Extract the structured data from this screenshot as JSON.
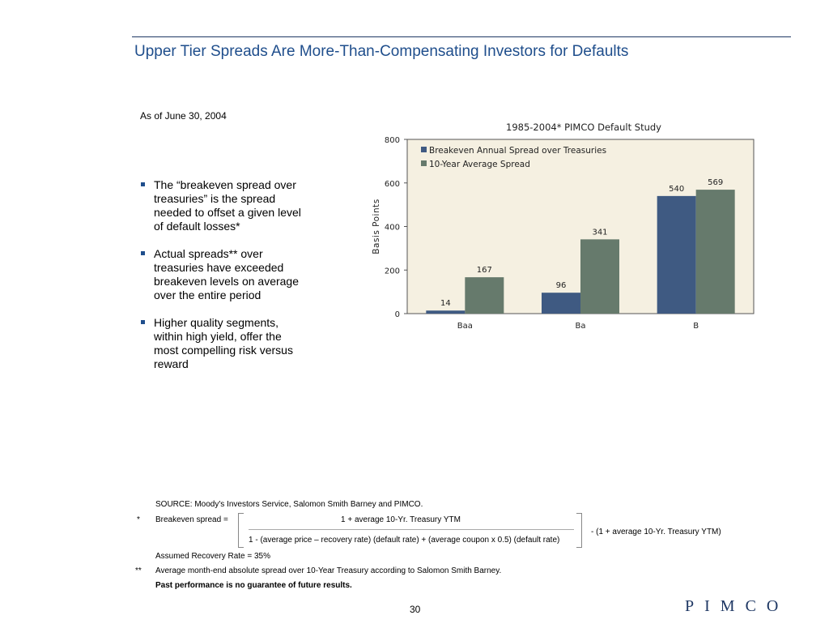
{
  "header": {
    "title": "Upper Tier Spreads Are More-Than-Compensating Investors for Defaults"
  },
  "as_of": "As of June 30, 2004",
  "bullets": [
    "The “breakeven spread over treasuries” is the spread needed to offset a given level of default losses*",
    "Actual spreads** over treasuries have exceeded breakeven levels on average over the entire period",
    "Higher quality segments, within high yield, offer the most compelling risk versus reward"
  ],
  "chart_data": {
    "type": "bar",
    "title": "1985-2004* PIMCO Default Study",
    "xlabel": "",
    "ylabel": "Basis Points",
    "categories": [
      "Baa",
      "Ba",
      "B"
    ],
    "series": [
      {
        "name": "Breakeven Annual Spread over Treasuries",
        "values": [
          14,
          96,
          540
        ],
        "color": "#3f5a82"
      },
      {
        "name": "10-Year Average Spread",
        "values": [
          167,
          341,
          569
        ],
        "color": "#667a6c"
      }
    ],
    "ylim": [
      0,
      800
    ],
    "yticks": [
      "0",
      "200",
      "400",
      "600",
      "800"
    ],
    "legend_position": "top-left",
    "grid": false,
    "plot_background": "#f5f0e1"
  },
  "footnotes": {
    "source": "SOURCE: Moody's Investors Service, Salomon Smith Barney and PIMCO.",
    "star": "*",
    "breakeven_label": "Breakeven spread =",
    "numerator": "1 + average 10-Yr. Treasury YTM",
    "denominator": "1 - (average price – recovery rate) (default rate) + (average coupon x 0.5) (default rate)",
    "minus_term": "-   (1 + average 10-Yr. Treasury YTM)",
    "recovery": "Assumed Recovery Rate = 35%",
    "double_star": "**",
    "average_note": "Average month-end absolute spread over 10-Year Treasury according to Salomon Smith Barney.",
    "disclaimer": "Past performance is no guarantee of future results."
  },
  "page_number": "30",
  "logo": "PIMCO",
  "colors": {
    "title": "#1f4e8c",
    "rule": "#1f3864"
  }
}
